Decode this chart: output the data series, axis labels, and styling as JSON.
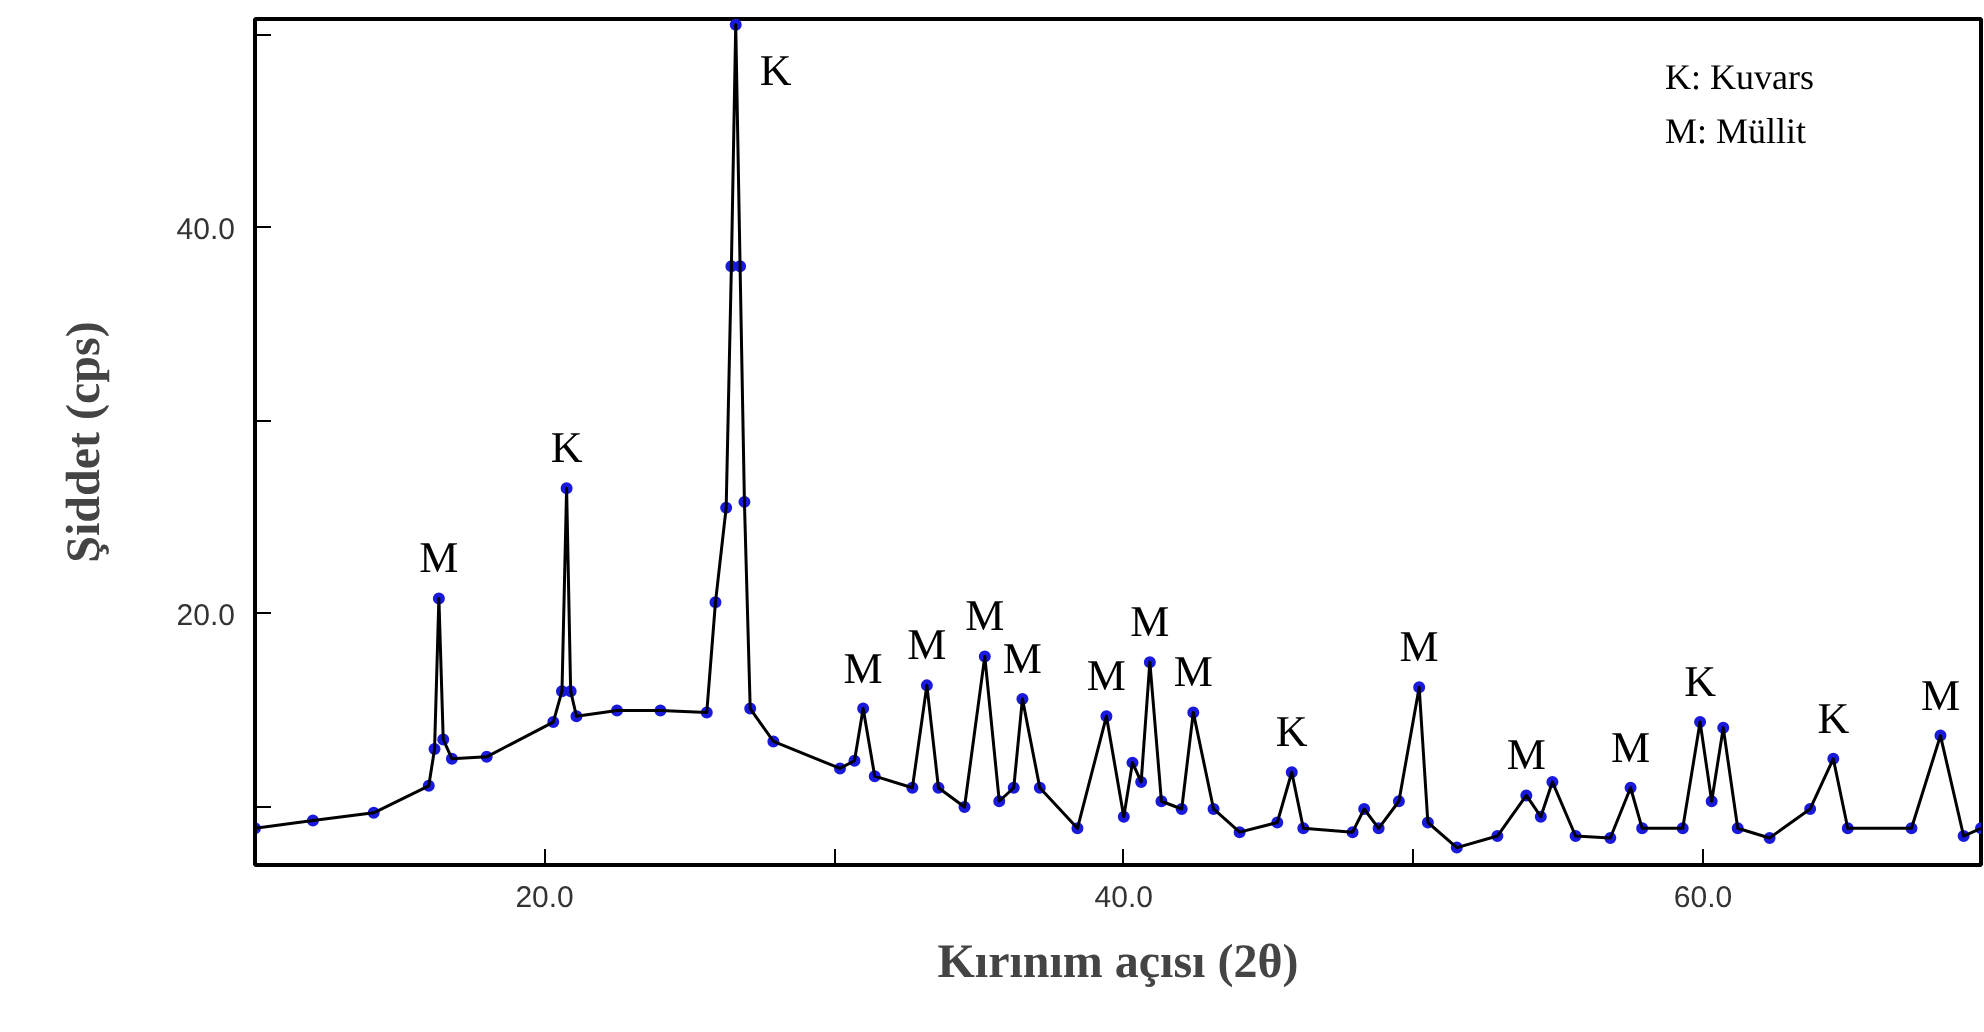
{
  "chart_data": {
    "type": "line",
    "xlabel": "Kırınım açısı (2θ)",
    "ylabel": "Şiddet (cps)",
    "xlim": [
      10,
      69.6
    ],
    "ylim": [
      7,
      50.8
    ],
    "xticks": [
      {
        "value": 20,
        "label": "20.0"
      },
      {
        "value": 30,
        "label": null
      },
      {
        "value": 40,
        "label": "40.0"
      },
      {
        "value": 50,
        "label": null
      },
      {
        "value": 60,
        "label": "60.0"
      }
    ],
    "yticks": [
      {
        "value": 10,
        "label": null
      },
      {
        "value": 20,
        "label": "20.0"
      },
      {
        "value": 30,
        "label": null
      },
      {
        "value": 40,
        "label": "40.0"
      },
      {
        "value": 50,
        "label": null
      }
    ],
    "grid": false,
    "x": [
      10.0,
      12.0,
      14.1,
      16.0,
      16.2,
      16.35,
      16.5,
      16.8,
      18.0,
      20.3,
      20.6,
      20.76,
      20.9,
      21.1,
      22.5,
      24.0,
      25.6,
      25.9,
      26.27,
      26.45,
      26.6,
      26.75,
      26.9,
      27.1,
      27.9,
      30.2,
      30.7,
      31.0,
      31.4,
      32.7,
      33.2,
      33.6,
      34.5,
      35.2,
      35.7,
      36.2,
      36.5,
      37.1,
      38.4,
      39.4,
      40.0,
      40.3,
      40.6,
      40.9,
      41.3,
      42.0,
      42.4,
      43.1,
      44.0,
      45.3,
      45.8,
      46.2,
      47.9,
      48.3,
      48.8,
      49.5,
      50.2,
      50.5,
      51.5,
      52.9,
      53.9,
      54.4,
      54.8,
      55.6,
      56.8,
      57.5,
      57.9,
      59.3,
      59.9,
      60.3,
      60.7,
      61.2,
      62.3,
      63.7,
      64.5,
      65.0,
      67.2,
      68.2,
      69.0,
      69.6
    ],
    "series": [
      {
        "type": "scatter",
        "marker": "circle",
        "color": "#1a1adc",
        "values": [
          8.9,
          9.3,
          9.7,
          11.1,
          13.0,
          20.8,
          13.5,
          12.5,
          12.6,
          14.4,
          16.0,
          26.5,
          16.0,
          14.7,
          15.0,
          15.0,
          14.9,
          20.6,
          25.5,
          38.0,
          50.5,
          38.0,
          25.8,
          15.1,
          13.4,
          12.0,
          12.4,
          15.1,
          11.6,
          11.0,
          16.3,
          11.0,
          10.0,
          17.8,
          10.3,
          11.0,
          15.6,
          11.0,
          8.9,
          14.7,
          9.5,
          12.3,
          11.3,
          17.5,
          10.3,
          9.9,
          14.9,
          9.9,
          8.7,
          9.2,
          11.8,
          8.9,
          8.7,
          9.9,
          8.9,
          10.3,
          16.2,
          9.2,
          7.9,
          8.5,
          10.6,
          9.5,
          11.3,
          8.5,
          8.4,
          11.0,
          8.9,
          8.9,
          14.4,
          10.3,
          14.1,
          8.9,
          8.4,
          9.9,
          12.5,
          8.9,
          8.9,
          13.7,
          8.5,
          8.9
        ]
      },
      {
        "color": "#000000",
        "values": [
          8.9,
          9.3,
          9.7,
          11.1,
          13.0,
          20.8,
          13.5,
          12.5,
          12.6,
          14.4,
          16.0,
          26.5,
          16.0,
          14.7,
          15.0,
          15.0,
          14.9,
          20.6,
          25.5,
          38.0,
          50.5,
          38.0,
          25.8,
          15.1,
          13.4,
          12.0,
          12.4,
          15.1,
          11.6,
          11.0,
          16.3,
          11.0,
          10.0,
          17.8,
          10.3,
          11.0,
          15.6,
          11.0,
          8.9,
          14.7,
          9.5,
          12.3,
          11.3,
          17.5,
          10.3,
          9.9,
          14.9,
          9.9,
          8.7,
          9.2,
          11.8,
          8.9,
          8.7,
          9.9,
          8.9,
          10.3,
          16.2,
          9.2,
          7.9,
          8.5,
          10.6,
          9.5,
          11.3,
          8.5,
          8.4,
          11.0,
          8.9,
          8.9,
          14.4,
          10.3,
          14.1,
          8.9,
          8.4,
          9.9,
          12.5,
          8.9,
          8.9,
          13.7,
          8.5,
          8.9
        ]
      }
    ],
    "annotations": [
      {
        "text": "M",
        "x": 16.35,
        "y": 20.8
      },
      {
        "text": "K",
        "x": 20.76,
        "y": 26.5
      },
      {
        "text": "K",
        "x": 26.6,
        "y": 50.5
      },
      {
        "text": "M",
        "x": 31.0,
        "y": 15.1
      },
      {
        "text": "M",
        "x": 33.2,
        "y": 16.3
      },
      {
        "text": "M",
        "x": 35.2,
        "y": 17.8
      },
      {
        "text": "M",
        "x": 36.5,
        "y": 15.6
      },
      {
        "text": "M",
        "x": 39.4,
        "y": 14.7
      },
      {
        "text": "M",
        "x": 40.9,
        "y": 17.5
      },
      {
        "text": "M",
        "x": 42.4,
        "y": 14.9
      },
      {
        "text": "K",
        "x": 45.8,
        "y": 11.8
      },
      {
        "text": "M",
        "x": 50.2,
        "y": 16.2
      },
      {
        "text": "M",
        "x": 53.9,
        "y": 10.6
      },
      {
        "text": "M",
        "x": 57.5,
        "y": 11.0
      },
      {
        "text": "K",
        "x": 59.9,
        "y": 14.4
      },
      {
        "text": "K",
        "x": 64.5,
        "y": 12.5
      },
      {
        "text": "M",
        "x": 68.2,
        "y": 13.7
      },
      "K: Kuvars",
      "M: Müllit"
    ]
  }
}
